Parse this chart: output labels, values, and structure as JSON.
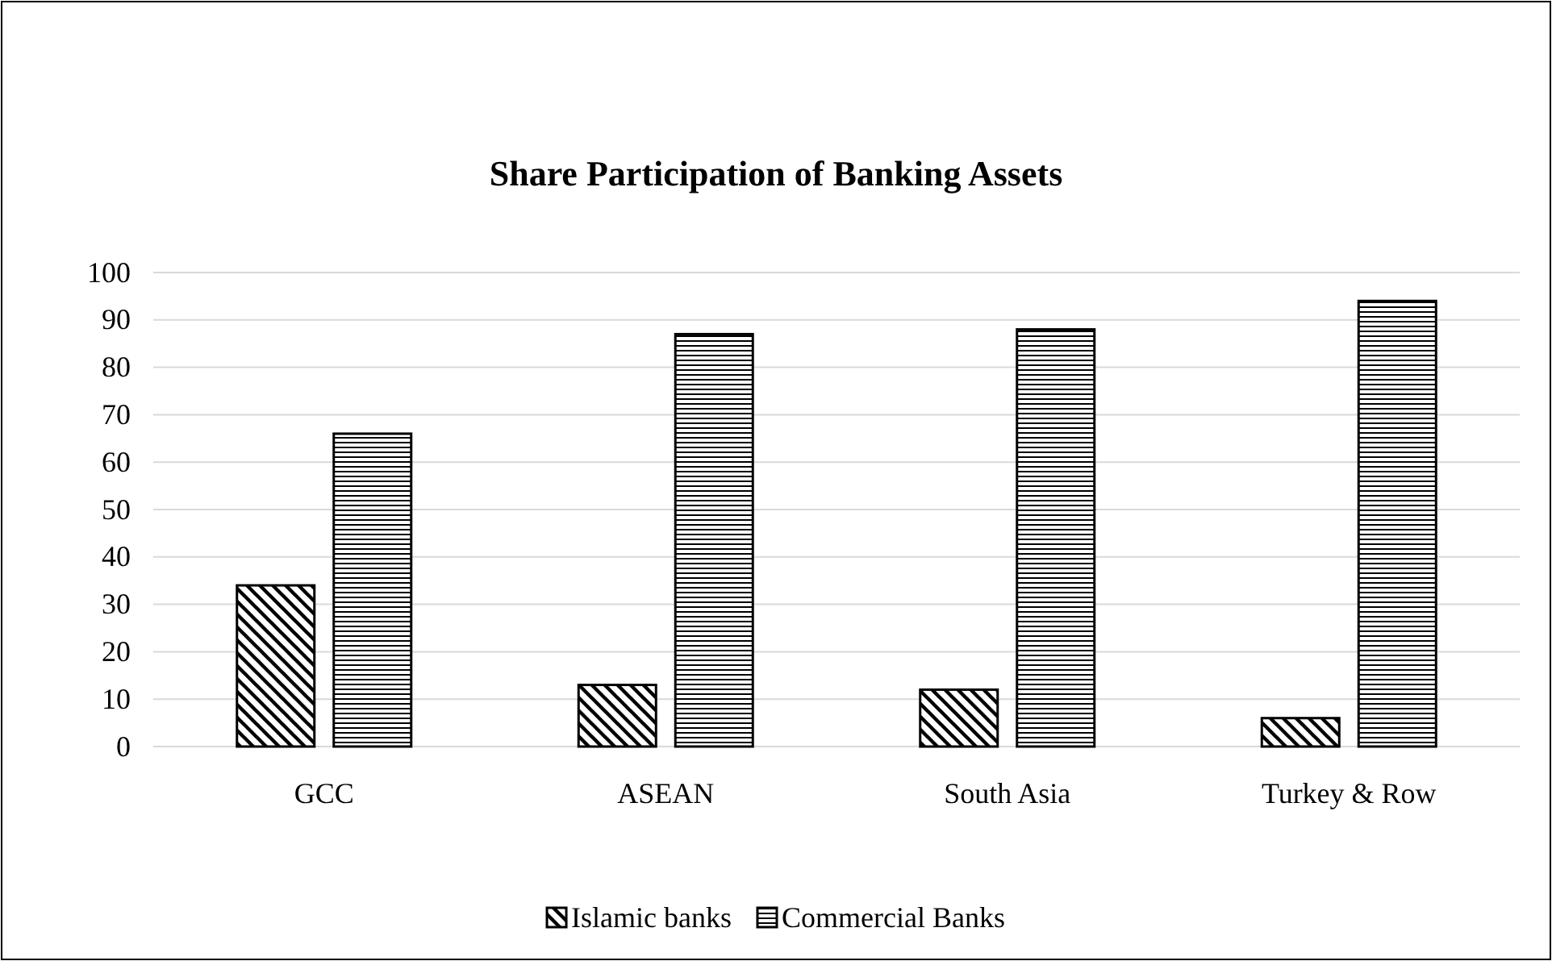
{
  "chart_data": {
    "type": "bar",
    "title": "Share Participation of Banking Assets",
    "categories": [
      "GCC",
      "ASEAN",
      "South Asia",
      "Turkey & Row"
    ],
    "series": [
      {
        "name": "Islamic banks",
        "color": "#000000",
        "values": [
          34,
          13,
          12,
          6
        ]
      },
      {
        "name": "Commercial Banks",
        "color": "#000000",
        "values": [
          66,
          87,
          88,
          94
        ]
      }
    ],
    "ylim": [
      0,
      100
    ],
    "yticks": [
      0,
      10,
      20,
      30,
      40,
      50,
      60,
      70,
      80,
      90,
      100
    ],
    "grid": "y",
    "legend": "bottom"
  }
}
